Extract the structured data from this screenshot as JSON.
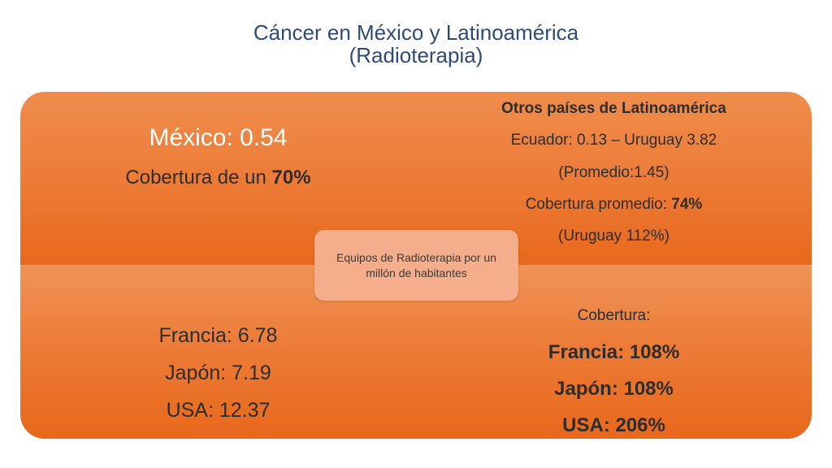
{
  "title": {
    "line1": "Cáncer en México y Latinoamérica",
    "line2": "(Radioterapia)"
  },
  "top_left": {
    "headline": "México: 0.54",
    "coverage_prefix": "Cobertura de un ",
    "coverage_value": "70%"
  },
  "top_right": {
    "heading": "Otros países de Latinoamérica",
    "range": "Ecuador: 0.13 – Uruguay 3.82",
    "average": "(Promedio:1.45)",
    "coverage_prefix": "Cobertura promedio: ",
    "coverage_value": "74%",
    "uruguay_note": "(Uruguay 112%)"
  },
  "center": {
    "label": "Equipos de Radioterapia por un millón de habitantes"
  },
  "bottom_left": {
    "items": [
      "Francia: 6.78",
      "Japón: 7.19",
      "USA: 12.37"
    ]
  },
  "bottom_right": {
    "heading": "Cobertura:",
    "items": [
      "Francia: 108%",
      "Japón: 108%",
      "USA: 206%"
    ]
  },
  "colors": {
    "title": "#2f4a74",
    "panel": "#ec7a35",
    "center_box": "#f4ae8c",
    "dark_text": "#2d2d2d"
  }
}
